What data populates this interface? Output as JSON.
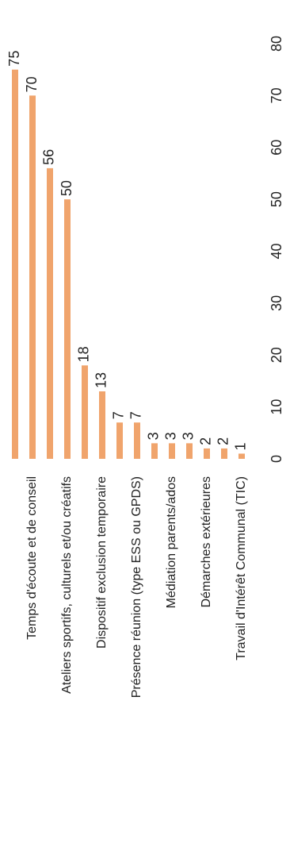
{
  "chart_data": {
    "type": "bar",
    "orientation": "rotated",
    "categories": [
      null,
      "Temps d'écoute et de conseil",
      null,
      "Ateliers sportifs, culturels et/ou créatifs",
      null,
      "Dispositif exclusion temporaire",
      null,
      "Présence réunion (type ESS ou GPDS)",
      null,
      "Médiation parents/ados",
      null,
      "Démarches extérieures",
      null,
      "Travail d'Intérêt Communal (TIC)"
    ],
    "values": [
      75,
      70,
      56,
      50,
      18,
      13,
      7,
      7,
      3,
      3,
      3,
      2,
      2,
      1
    ],
    "color": "#f0a46c",
    "ylim": [
      0,
      80
    ],
    "yticks": [
      0,
      10,
      20,
      30,
      40,
      50,
      60,
      70,
      80
    ],
    "grid": false
  }
}
